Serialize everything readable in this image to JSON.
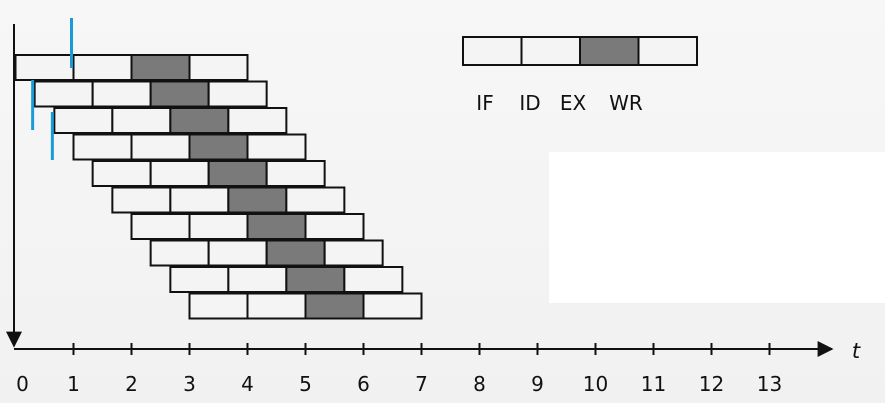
{
  "legend": {
    "stages": [
      "IF",
      "ID",
      "EX",
      "WR"
    ],
    "highlight_stage": "EX"
  },
  "axis": {
    "x_label": "t",
    "ticks": [
      "0",
      "1",
      "2",
      "3",
      "4",
      "5",
      "6",
      "7",
      "8",
      "9",
      "10",
      "11",
      "12",
      "13"
    ]
  },
  "pipeline": {
    "instruction_count": 10,
    "stage_duration": 1,
    "row_start_times": [
      0,
      0.33,
      0.67,
      1,
      1.33,
      1.67,
      2,
      2.33,
      2.67,
      3
    ]
  },
  "markers": {
    "color": "#1a9bd7",
    "times": [
      1,
      0.33,
      0.67
    ]
  },
  "colors": {
    "ex_fill": "#7a7a7a",
    "box_fill": "#f4f4f4",
    "stroke": "#111111",
    "overlay": "#ffffff"
  }
}
